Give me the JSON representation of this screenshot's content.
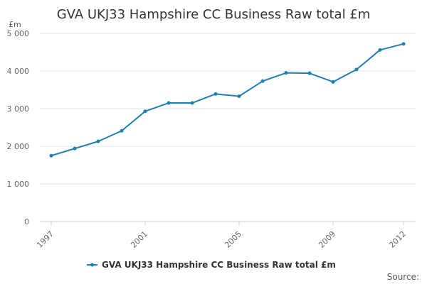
{
  "chart_data": {
    "type": "line",
    "title": "GVA UKJ33 Hampshire CC Business Raw total £m",
    "unit_label": "£m",
    "x": [
      1997,
      1998,
      1999,
      2000,
      2001,
      2002,
      2003,
      2004,
      2005,
      2006,
      2007,
      2008,
      2009,
      2010,
      2011,
      2012
    ],
    "x_tick_labels": [
      "1997",
      "2001",
      "2005",
      "2009",
      "2012"
    ],
    "y_tick_labels": [
      "0",
      "1 000",
      "2 000",
      "3 000",
      "4 000",
      "5 000"
    ],
    "ylim": [
      0,
      5000
    ],
    "series": [
      {
        "name": "GVA UKJ33 Hampshire CC Business Raw total £m",
        "color": "#1f7fb0",
        "values": [
          1750,
          1940,
          2130,
          2410,
          2930,
          3150,
          3150,
          3390,
          3330,
          3730,
          3950,
          3940,
          3710,
          4040,
          4560,
          4720
        ]
      }
    ],
    "grid": true,
    "legend_position": "bottom-center",
    "source_label": "Source:"
  }
}
